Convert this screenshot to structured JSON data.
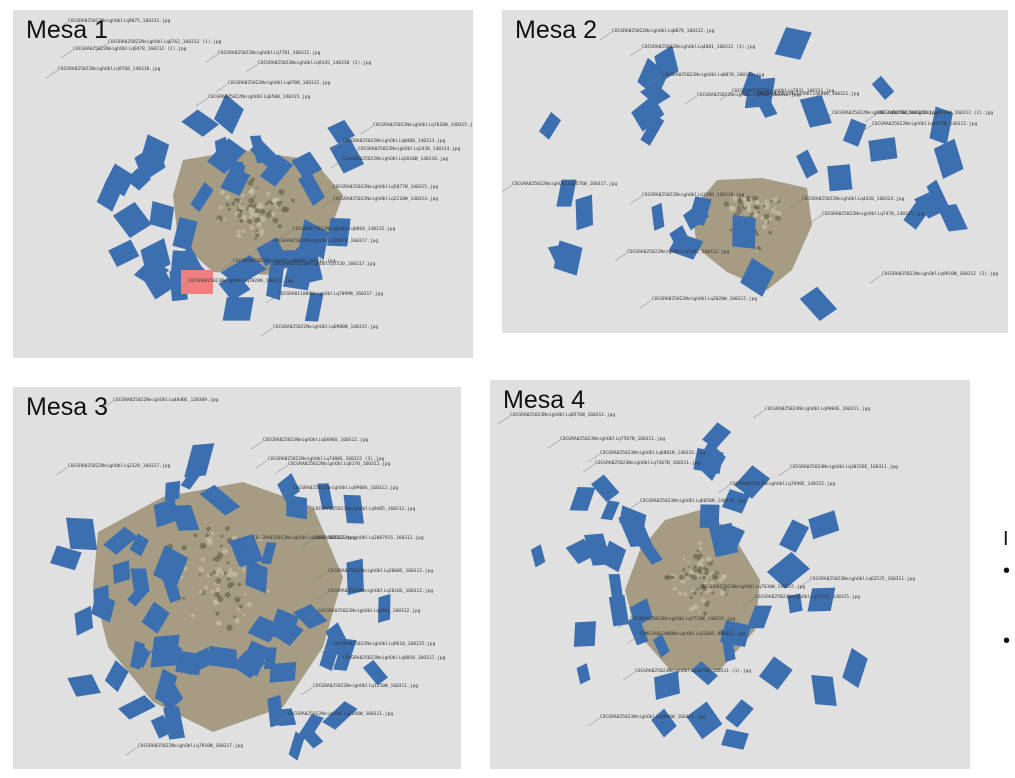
{
  "colors": {
    "panel_bg": "#e0e0e0",
    "camera_blue": "#3c6fb0",
    "camera_selected": "#f08080",
    "terrain_brown": "#9a8f72",
    "terrain_dark": "#6e6550",
    "leader_line": "#777777"
  },
  "panels": [
    {
      "title": "Mesa 1",
      "labels": [
        "COCGRA025022NeighObliq9075_160311.jpg",
        "COCGRA025022NeighObliq0762_160312 (1).jpg",
        "COCGRA025022NeighObliq9478_160312 (2).jpg",
        "COCGRA025022NeighObliq7701_160312.jpg",
        "COCGRA025023NeighObliq9145_140310 (2).jpg",
        "COCGRA025022NeighObliq9760_140310.jpg",
        "COCGRA025022NeighObliq0700_160312.jpg",
        "COCGRA025022NeighObliq6500_140315.jpg",
        "COCGRA025022NeighObliq7010W_140315.jpg",
        "COCGRA025022NeighObliq0400_140313.jpg",
        "COCGRA025022NeighObliq2430_140314.jpg",
        "COCGRA025022NeighObliq2010W_140310.jpg",
        "COCGRA025022NeighObliq5877W_140315.jpg",
        "COCGRA025022NeighObliq2210W_140314.jpg",
        "COCGRA025022NeighObliq0864_140315.jpg",
        "COCGRA025022NeighObliq2067W_160317.jpg",
        "COCGRA025023NeighObliq7020N_140315.jpg",
        "COCGRA025022NeighObliq7520_160317.jpg",
        "COCGRA025022NeighObliq0800_160312.jpg",
        "COCGRA011009NeighObliq7099N_160317.jpg",
        "COCGRA025022NeighObliq0980N_140315.jpg"
      ]
    },
    {
      "title": "Mesa 2",
      "labels": [
        "COCGRA025022NeighObliq0076_160312.jpg",
        "COCGRA025022NeighObliq4601_160311 (1).jpg",
        "COCGRA025022NeighObliq0070_160311.jpg",
        "COCGRA025022NeighObliq9900_160312.jpg",
        "COCGRA025022NeighObliq7031_140311.jpg",
        "COCGRA025022NeighObliq6900_160321.jpg",
        "COCGRA025022NeighObliq5679W_140315.jpg",
        "COCGRA025022NeighObliq9910W_160312 (2).jpg",
        "COCGRA025022NeighObliq9527N_140312.jpg",
        "COCGRA025022NeighObliq4420_160324.jpg",
        "COCGRA025022NeighObliq0576W_160317.jpg",
        "COCGRA025022NeighObliq1500_140318.jpg",
        "COCGRA025022NeighObliq7470_140315.jpg",
        "COCGRA025022NeighObliq9910N_160312 (2).jpg",
        "COCGRA025022NeighObliq7402_160312.jpg",
        "COCGRA025022NeighObliq2020W_160312.jpg"
      ]
    },
    {
      "title": "Mesa 3",
      "labels": [
        "COCGRA025022NeighObliq4840E_120309.jpg",
        "COCGRA025023NeighObliq6690S_160312.jpg",
        "COCGRA025022NeighObliq7480S_160312 (3).jpg",
        "COCGRA025022NeighObliq9900S_160312.jpg",
        "COCGRA025022NeighObliq8170_160312.jpg",
        "COCGRA025022NeighObliq9485_160312.jpg",
        "COCGRA025022NeighObliq2320_160317.jpg",
        "COCGRA025022NeighObliq1480_160312.jpg",
        "COCGRA025022NeighObliq2087915_160312.jpg",
        "COCGRA025022NeighObliq2060S_160312.jpg",
        "COCGRA025022NeighObliq2010S_160312.jpg",
        "COCGRA025022NeighObliq0403_160312.jpg",
        "COCGRA025022NeighObliq9610_160315.jpg",
        "COCGRA025022NeighObliq8050_160317.jpg",
        "COCGRA025022NeighObliq1250W_160311.jpg",
        "COCGRA025022NeighObliq1260W_160311.jpg",
        "COCGRA025022NeighObliq7910N_160317.jpg"
      ]
    },
    {
      "title": "Mesa 4",
      "labels": [
        "COCGRA025023NeighObliq0576N_160311.jpg",
        "COCGRA025023NeighObliq9984E_160311.jpg",
        "COCGRA025023NeighObliq7567N_160311.jpg",
        "COCGRA025023NeighObliq8881N_140315.jpg",
        "COCGRA025023NeighObliq7467N_160311.jpg",
        "COCGRA025024NeighObliq30150E_160311.jpg",
        "COCGRA025023NeighObliq7690E_140315.jpg",
        "COCGRA025023NeighObliq8058N_140315.jpg",
        "COCGRA025023NeighObliq7630W_140315.jpg",
        "COCGRA025023NeighObliq62525_160311.jpg",
        "COCGRA025023NeighObliq72745_140315.jpg",
        "COMESA013009NeighObliq33685_080312.jpg",
        "COCGRA025023NeighObliq7720N_140315.jpg",
        "COCGRA025023NeighObliq3070W_160311 (1).jpg",
        "COCGRA025023NeighObliq3800W_160311.jpg"
      ]
    }
  ],
  "cut_text": {
    "letter": "I",
    "bullet_1": "•",
    "bullet_2": "•"
  }
}
